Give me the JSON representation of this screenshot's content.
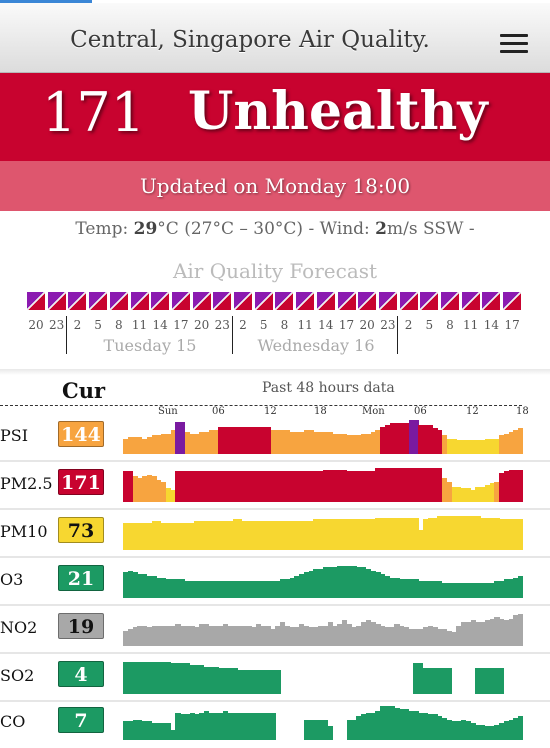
{
  "header": {
    "title": "Central, Singapore Air Quality.",
    "menu_icon": "hamburger-menu-icon"
  },
  "aqi": {
    "value": "171",
    "label": "Unhealthy",
    "color": "#c8032f"
  },
  "updated": "Updated on Monday 18:00",
  "weather": {
    "temp_label": "Temp:",
    "temp": "29",
    "range": "°C (27°C – 30°C) - Wind:",
    "wind": "2",
    "wind_unit": "m/s SSW -"
  },
  "forecast": {
    "title": "Air Quality Forecast",
    "hours": [
      "20",
      "23",
      "2",
      "5",
      "8",
      "11",
      "14",
      "17",
      "20",
      "23",
      "2",
      "5",
      "8",
      "11",
      "14",
      "17",
      "20",
      "23",
      "2",
      "5",
      "8",
      "11",
      "14",
      "17"
    ],
    "days": [
      "Tuesday 15",
      "Wednesday 16"
    ]
  },
  "history": {
    "current_label": "Cur",
    "title": "Past 48 hours data",
    "timeline_labels": [
      "Sun",
      "06",
      "12",
      "18",
      "Mon",
      "06",
      "12",
      "18"
    ],
    "colors": {
      "good": "#1c9a63",
      "moderate": "#f7d730",
      "unhealthy_sensitive": "#f7a440",
      "unhealthy": "#c8032f",
      "very_unhealthy": "#7a1aa0",
      "no_data": "#a8a8a8"
    },
    "rows": [
      {
        "name": "PSI",
        "current": "144",
        "level": "unhealthy_sensitive",
        "values": [
          1,
          1,
          1,
          1,
          1,
          1,
          1,
          1,
          1,
          1,
          2,
          3,
          3,
          2,
          2,
          2,
          2,
          2,
          2,
          2,
          3,
          3,
          3,
          3,
          3,
          3,
          3,
          3,
          3,
          3,
          3,
          2,
          2,
          2,
          2,
          2,
          2,
          2,
          2,
          2,
          2,
          2,
          2,
          2,
          2,
          2,
          2,
          2,
          2,
          2,
          2,
          2,
          2,
          2,
          3,
          3,
          3,
          3,
          3,
          3,
          4,
          4,
          3,
          3,
          3,
          2,
          2,
          1,
          1,
          1,
          1,
          1,
          1,
          1,
          1,
          1,
          1,
          1,
          1,
          2,
          2,
          2,
          2,
          2
        ],
        "levels": [
          "s",
          "s",
          "s",
          "s",
          "s",
          "s",
          "s",
          "s",
          "s",
          "s",
          "s",
          "v",
          "v",
          "s",
          "s",
          "s",
          "s",
          "s",
          "s",
          "s",
          "u",
          "u",
          "u",
          "u",
          "u",
          "u",
          "u",
          "u",
          "u",
          "u",
          "u",
          "s",
          "s",
          "s",
          "s",
          "s",
          "s",
          "s",
          "s",
          "s",
          "s",
          "s",
          "s",
          "s",
          "s",
          "s",
          "s",
          "s",
          "s",
          "s",
          "s",
          "s",
          "s",
          "s",
          "u",
          "u",
          "u",
          "u",
          "u",
          "u",
          "v",
          "v",
          "u",
          "u",
          "u",
          "u",
          "u",
          "s",
          "m",
          "m",
          "m",
          "m",
          "m",
          "m",
          "m",
          "m",
          "m",
          "m",
          "m",
          "s",
          "s",
          "s",
          "s",
          "s"
        ]
      },
      {
        "name": "PM2.5",
        "current": "171",
        "level": "unhealthy",
        "values": [
          3,
          3,
          3,
          3,
          3,
          3,
          3,
          3,
          3,
          3,
          3,
          3,
          3,
          3,
          3,
          3,
          3,
          3,
          3,
          3,
          3,
          3,
          3,
          3,
          3,
          3,
          3,
          3,
          3,
          3,
          3,
          3,
          3,
          3,
          3,
          3,
          3,
          3,
          3,
          3,
          3,
          3,
          3,
          3,
          3,
          3,
          3,
          3,
          3,
          3,
          3,
          3,
          3,
          3,
          3,
          3,
          3,
          3,
          3,
          3,
          3,
          3,
          3,
          3,
          3,
          3,
          3,
          3,
          3,
          3,
          3,
          3,
          3,
          3,
          3,
          3,
          3,
          3,
          3,
          3,
          3,
          3,
          3,
          3
        ],
        "levels": [
          "u",
          "u",
          "s",
          "s",
          "s",
          "s",
          "s",
          "s",
          "s",
          "m",
          "m",
          "u",
          "u",
          "u",
          "u",
          "u",
          "u",
          "u",
          "u",
          "u",
          "u",
          "u",
          "u",
          "u",
          "u",
          "u",
          "u",
          "u",
          "u",
          "u",
          "u",
          "u",
          "u",
          "u",
          "u",
          "u",
          "u",
          "u",
          "u",
          "u",
          "u",
          "u",
          "u",
          "u",
          "u",
          "u",
          "u",
          "u",
          "u",
          "u",
          "u",
          "u",
          "u",
          "u",
          "u",
          "u",
          "u",
          "u",
          "u",
          "u",
          "u",
          "u",
          "u",
          "u",
          "u",
          "u",
          "u",
          "s",
          "s",
          "m",
          "m",
          "m",
          "m",
          "m",
          "m",
          "m",
          "m",
          "m",
          "s",
          "u",
          "u",
          "u",
          "u",
          "u"
        ]
      },
      {
        "name": "PM10",
        "current": "73",
        "level": "moderate",
        "values": [
          3,
          3,
          3,
          3,
          3,
          3,
          3,
          3,
          3,
          3,
          3,
          3,
          3,
          3,
          3,
          3,
          3,
          3,
          3,
          3,
          3,
          3,
          3,
          3,
          3,
          3,
          3,
          3,
          3,
          3,
          3,
          3,
          3,
          3,
          3,
          3,
          3,
          3,
          3,
          3,
          3,
          3,
          3,
          3,
          3,
          3,
          3,
          3,
          3,
          3,
          3,
          3,
          3,
          3,
          3,
          3,
          3,
          3,
          3,
          3,
          3,
          3,
          3,
          3,
          3,
          3,
          3,
          3,
          3,
          3,
          3,
          3,
          3,
          3,
          3,
          3,
          3,
          3,
          3,
          3,
          3,
          3,
          3,
          3
        ],
        "levels": [
          "m",
          "m",
          "m",
          "m",
          "m",
          "m",
          "m",
          "m",
          "m",
          "m",
          "m",
          "m",
          "m",
          "m",
          "m",
          "m",
          "m",
          "m",
          "m",
          "m",
          "m",
          "m",
          "m",
          "m",
          "m",
          "m",
          "m",
          "m",
          "m",
          "m",
          "m",
          "m",
          "m",
          "m",
          "m",
          "m",
          "m",
          "m",
          "m",
          "m",
          "m",
          "m",
          "m",
          "m",
          "m",
          "m",
          "m",
          "m",
          "m",
          "m",
          "m",
          "m",
          "m",
          "m",
          "m",
          "m",
          "m",
          "m",
          "m",
          "m",
          "m",
          "m",
          "m",
          "m",
          "m",
          "m",
          "m",
          "m",
          "m",
          "m",
          "m",
          "m",
          "m",
          "m",
          "m",
          "m",
          "m",
          "m",
          "m",
          "m",
          "m",
          "m",
          "m",
          "m"
        ]
      },
      {
        "name": "O3",
        "current": "21",
        "level": "good",
        "values": [
          3,
          3,
          3,
          3,
          3,
          3,
          3,
          3,
          3,
          3,
          3,
          3,
          3,
          3,
          3,
          3,
          3,
          3,
          3,
          3,
          3,
          3,
          3,
          3,
          3,
          3,
          3,
          3,
          3,
          3,
          3,
          3,
          3,
          3,
          3,
          3,
          3,
          3,
          3,
          3,
          3,
          3,
          3,
          3,
          3,
          3,
          3,
          3,
          3,
          3,
          3,
          3,
          3,
          3,
          3,
          3,
          3,
          3,
          3,
          3,
          3,
          3,
          3,
          3,
          3,
          3,
          3,
          3,
          3,
          3,
          3,
          3,
          3,
          3,
          3,
          3,
          3,
          3,
          3,
          3,
          3,
          3,
          3,
          3
        ],
        "levels": [
          "g",
          "g",
          "g",
          "g",
          "g",
          "g",
          "g",
          "g",
          "g",
          "g",
          "g",
          "g",
          "g",
          "g",
          "g",
          "g",
          "g",
          "g",
          "g",
          "g",
          "g",
          "g",
          "g",
          "g",
          "g",
          "g",
          "g",
          "g",
          "g",
          "g",
          "g",
          "g",
          "g",
          "g",
          "g",
          "g",
          "g",
          "g",
          "g",
          "g",
          "g",
          "g",
          "g",
          "g",
          "g",
          "g",
          "g",
          "g",
          "g",
          "g",
          "g",
          "g",
          "g",
          "g",
          "g",
          "g",
          "g",
          "g",
          "g",
          "g",
          "g",
          "g",
          "g",
          "g",
          "g",
          "g",
          "g",
          "g",
          "g",
          "g",
          "g",
          "g",
          "g",
          "g",
          "g",
          "g",
          "g",
          "g",
          "g",
          "g",
          "g",
          "g",
          "g",
          "g"
        ]
      },
      {
        "name": "NO2",
        "current": "19",
        "level": "no_data",
        "values": [
          3,
          3,
          3,
          3,
          3,
          3,
          3,
          3,
          3,
          3,
          3,
          3,
          3,
          3,
          3,
          3,
          3,
          3,
          3,
          3,
          3,
          3,
          3,
          3,
          3,
          3,
          3,
          3,
          3,
          3,
          3,
          3,
          3,
          3,
          3,
          3,
          3,
          3,
          3,
          3,
          3,
          3,
          3,
          3,
          3,
          3,
          3,
          3,
          3,
          3,
          3,
          3,
          3,
          3,
          3,
          3,
          3,
          3,
          3,
          3,
          3,
          3,
          3,
          3,
          3,
          3,
          3,
          3,
          3,
          3,
          3,
          3,
          3,
          3,
          3,
          3,
          3,
          3,
          3,
          3,
          3,
          3,
          3,
          3
        ],
        "levels": [
          "n",
          "n",
          "n",
          "n",
          "n",
          "n",
          "n",
          "n",
          "n",
          "n",
          "n",
          "n",
          "n",
          "n",
          "n",
          "n",
          "n",
          "n",
          "n",
          "n",
          "n",
          "n",
          "n",
          "n",
          "n",
          "n",
          "n",
          "n",
          "n",
          "n",
          "n",
          "n",
          "n",
          "n",
          "n",
          "n",
          "n",
          "n",
          "n",
          "n",
          "n",
          "n",
          "n",
          "n",
          "n",
          "n",
          "n",
          "n",
          "n",
          "n",
          "n",
          "n",
          "n",
          "n",
          "n",
          "n",
          "n",
          "n",
          "n",
          "n",
          "n",
          "n",
          "n",
          "n",
          "n",
          "n",
          "n",
          "n",
          "n",
          "n",
          "n",
          "n",
          "n",
          "n",
          "n",
          "n",
          "n",
          "n",
          "n",
          "n",
          "n",
          "n",
          "n",
          "n"
        ]
      },
      {
        "name": "SO2",
        "current": "4",
        "level": "good",
        "values": [
          3,
          3,
          3,
          3,
          3,
          3,
          3,
          3,
          3,
          3,
          3,
          3,
          3,
          3,
          3,
          3,
          3,
          3,
          3,
          3,
          3,
          3,
          3,
          3,
          3,
          3,
          3,
          3,
          3,
          3,
          3,
          3,
          3,
          0,
          0,
          0,
          0,
          0,
          0,
          0,
          0,
          0,
          0,
          0,
          0,
          0,
          0,
          0,
          0,
          0,
          0,
          0,
          0,
          0,
          0,
          0,
          0,
          0,
          0,
          0,
          0,
          3,
          3,
          3,
          3,
          3,
          3,
          3,
          3,
          0,
          0,
          0,
          0,
          0,
          3,
          3,
          3,
          3,
          3,
          3,
          0,
          0,
          0,
          0
        ],
        "levels": [
          "g",
          "g",
          "g",
          "g",
          "g",
          "g",
          "g",
          "g",
          "g",
          "g",
          "g",
          "g",
          "g",
          "g",
          "g",
          "g",
          "g",
          "g",
          "g",
          "g",
          "g",
          "g",
          "g",
          "g",
          "g",
          "g",
          "g",
          "g",
          "g",
          "g",
          "g",
          "g",
          "g",
          "g",
          "g",
          "g",
          "g",
          "g",
          "g",
          "g",
          "g",
          "g",
          "g",
          "g",
          "g",
          "g",
          "g",
          "g",
          "g",
          "g",
          "g",
          "g",
          "g",
          "g",
          "g",
          "g",
          "g",
          "g",
          "g",
          "g",
          "g",
          "g",
          "g",
          "g",
          "g",
          "g",
          "g",
          "g",
          "g",
          "g",
          "g",
          "g",
          "g",
          "g",
          "g",
          "g",
          "g",
          "g",
          "g",
          "g",
          "g",
          "g",
          "g",
          "g"
        ]
      },
      {
        "name": "CO",
        "current": "7",
        "level": "good",
        "values": [
          3,
          3,
          3,
          3,
          3,
          3,
          3,
          3,
          3,
          3,
          3,
          3,
          3,
          3,
          3,
          3,
          3,
          3,
          3,
          3,
          3,
          3,
          3,
          3,
          3,
          3,
          3,
          3,
          3,
          3,
          3,
          3,
          0,
          0,
          0,
          0,
          0,
          0,
          3,
          3,
          3,
          3,
          3,
          3,
          0,
          0,
          0,
          3,
          3,
          3,
          3,
          3,
          3,
          3,
          3,
          3,
          3,
          3,
          3,
          3,
          3,
          3,
          3,
          3,
          3,
          3,
          3,
          3,
          3,
          3,
          3,
          3,
          3,
          3,
          3,
          3,
          3,
          3,
          3,
          3,
          3,
          3,
          3,
          3
        ],
        "levels": [
          "g",
          "g",
          "g",
          "g",
          "g",
          "g",
          "g",
          "g",
          "g",
          "g",
          "g",
          "g",
          "g",
          "g",
          "g",
          "g",
          "g",
          "g",
          "g",
          "g",
          "g",
          "g",
          "g",
          "g",
          "g",
          "g",
          "g",
          "g",
          "g",
          "g",
          "g",
          "g",
          "g",
          "g",
          "g",
          "g",
          "g",
          "g",
          "g",
          "g",
          "g",
          "g",
          "g",
          "g",
          "g",
          "g",
          "g",
          "g",
          "g",
          "g",
          "g",
          "g",
          "g",
          "g",
          "g",
          "g",
          "g",
          "g",
          "g",
          "g",
          "g",
          "g",
          "g",
          "g",
          "g",
          "g",
          "g",
          "g",
          "g",
          "g",
          "g",
          "g",
          "g",
          "g",
          "g",
          "g",
          "g",
          "g",
          "g",
          "g",
          "g",
          "g",
          "g",
          "g"
        ]
      }
    ]
  }
}
